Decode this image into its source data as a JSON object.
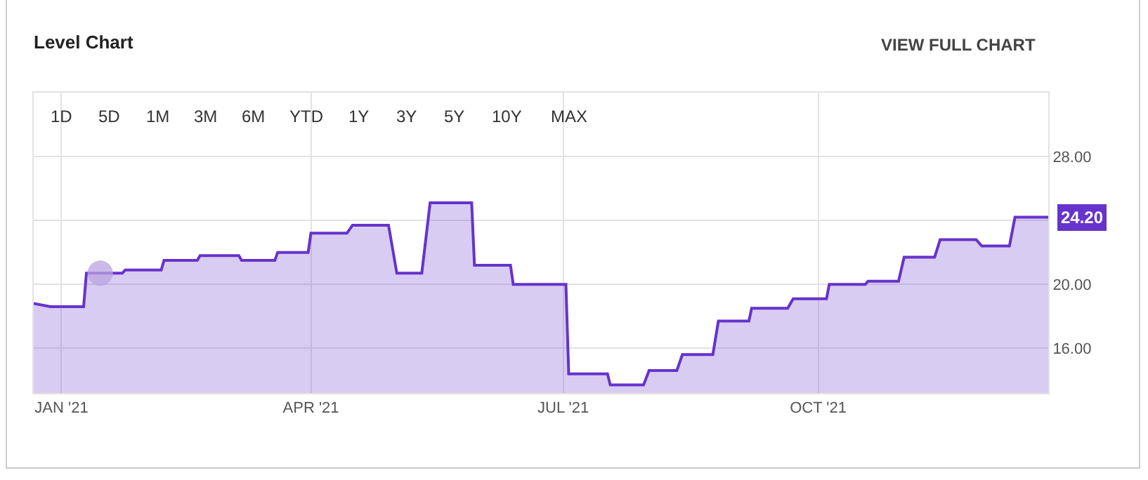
{
  "chart_data": {
    "type": "area",
    "title": "Level Chart",
    "annotations": [
      "VIEW FULL CHART",
      "1D",
      "5D",
      "1M",
      "3M",
      "6M",
      "YTD",
      "1Y",
      "3Y",
      "5Y",
      "10Y",
      "MAX",
      {
        "text": "24.20",
        "x": "2021-12-23",
        "y": 24.2
      }
    ],
    "x": [
      "2020-12-22",
      "2020-12-28",
      "2021-01-09",
      "2021-01-10",
      "2021-01-23",
      "2021-01-24",
      "2021-02-06",
      "2021-02-07",
      "2021-02-19",
      "2021-02-20",
      "2021-03-06",
      "2021-03-07",
      "2021-03-19",
      "2021-03-20",
      "2021-03-31",
      "2021-04-01",
      "2021-04-14",
      "2021-04-16",
      "2021-04-29",
      "2021-05-02",
      "2021-05-11",
      "2021-05-14",
      "2021-05-29",
      "2021-05-30",
      "2021-06-12",
      "2021-06-13",
      "2021-07-02",
      "2021-07-03",
      "2021-07-17",
      "2021-07-18",
      "2021-07-30",
      "2021-08-01",
      "2021-08-11",
      "2021-08-13",
      "2021-08-24",
      "2021-08-26",
      "2021-09-06",
      "2021-09-07",
      "2021-09-20",
      "2021-09-22",
      "2021-10-04",
      "2021-10-05",
      "2021-10-18",
      "2021-10-19",
      "2021-10-30",
      "2021-11-01",
      "2021-11-12",
      "2021-11-14",
      "2021-11-27",
      "2021-11-29",
      "2021-12-09",
      "2021-12-11",
      "2021-12-23"
    ],
    "series": [
      {
        "color": "#6633cc",
        "values": [
          18.8,
          18.6,
          18.6,
          20.7,
          20.7,
          20.9,
          20.9,
          21.5,
          21.5,
          21.8,
          21.8,
          21.5,
          21.5,
          22.0,
          22.0,
          23.2,
          23.2,
          23.7,
          23.7,
          20.7,
          20.7,
          25.1,
          25.1,
          21.2,
          21.2,
          20.0,
          20.0,
          14.4,
          14.4,
          13.7,
          13.7,
          14.6,
          14.6,
          15.6,
          15.6,
          17.7,
          17.7,
          18.5,
          18.5,
          19.1,
          19.1,
          20.0,
          20.0,
          20.2,
          20.2,
          21.7,
          21.7,
          22.8,
          22.8,
          22.4,
          22.4,
          24.2,
          24.2
        ]
      },
      {
        "type": "scatter",
        "marker": "circle",
        "color": "#b9a3e0",
        "x": [
          "2021-01-15"
        ],
        "values": [
          20.7
        ]
      }
    ],
    "xlim": [
      "2020-12-22",
      "2021-12-23"
    ],
    "xticks": [
      {
        "value": "2021-01-01",
        "label": "JAN '21"
      },
      {
        "value": "2021-04-01",
        "label": "APR '21"
      },
      {
        "value": "2021-07-01",
        "label": "JUL '21"
      },
      {
        "value": "2021-10-01",
        "label": "OCT '21"
      }
    ],
    "ylim": [
      13.2,
      32
    ],
    "yticks": [
      {
        "value": 16,
        "label": "16.00"
      },
      {
        "value": 20,
        "label": "20.00"
      },
      {
        "value": 24,
        "label": null
      },
      {
        "value": 28,
        "label": "28.00"
      }
    ],
    "grid": true,
    "line_style": "solid"
  }
}
